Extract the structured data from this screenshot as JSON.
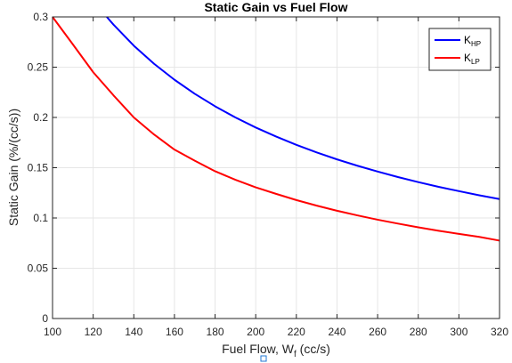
{
  "chart_data": {
    "type": "line",
    "title": "Static Gain vs Fuel Flow",
    "xlabel_main": "Fuel Flow, W",
    "xlabel_sub": "f",
    "xlabel_unit": " (cc/s)",
    "ylabel": "Static Gain (%/(cc/s))",
    "xlim": [
      100,
      320
    ],
    "ylim": [
      0,
      0.3
    ],
    "x_ticks": [
      100,
      120,
      140,
      160,
      180,
      200,
      220,
      240,
      260,
      280,
      300,
      320
    ],
    "x_tick_labels": [
      "100",
      "120",
      "140",
      "160",
      "180",
      "200",
      "220",
      "240",
      "260",
      "280",
      "300",
      "320"
    ],
    "y_ticks": [
      0,
      0.05,
      0.1,
      0.15,
      0.2,
      0.25,
      0.3
    ],
    "y_tick_labels": [
      "0",
      "0.05",
      "0.1",
      "0.15",
      "0.2",
      "0.25",
      "0.3"
    ],
    "grid": true,
    "legend_position": "top-right",
    "series": [
      {
        "name_main": "K",
        "name_sub": "HP",
        "color": "#0000ff",
        "x": [
          126.7,
          130,
          140,
          150,
          160,
          170,
          180,
          190,
          200,
          210,
          220,
          230,
          240,
          250,
          260,
          270,
          280,
          290,
          300,
          310,
          320
        ],
        "y": [
          0.3,
          0.2923,
          0.2714,
          0.2533,
          0.2375,
          0.2235,
          0.2111,
          0.2,
          0.19,
          0.181,
          0.1727,
          0.1652,
          0.1583,
          0.152,
          0.1462,
          0.1407,
          0.1357,
          0.131,
          0.1267,
          0.1226,
          0.1188
        ]
      },
      {
        "name_main": "K",
        "name_sub": "LP",
        "color": "#ff0000",
        "x": [
          100,
          110,
          120,
          130,
          140,
          150,
          160,
          170,
          180,
          190,
          200,
          210,
          220,
          230,
          240,
          250,
          260,
          270,
          280,
          290,
          300,
          310,
          320
        ],
        "y": [
          0.3,
          0.2727,
          0.245,
          0.222,
          0.2,
          0.183,
          0.168,
          0.157,
          0.1465,
          0.138,
          0.1305,
          0.124,
          0.1178,
          0.1123,
          0.1072,
          0.1026,
          0.0983,
          0.0944,
          0.0907,
          0.0873,
          0.0842,
          0.0812,
          0.0775
        ]
      }
    ]
  }
}
